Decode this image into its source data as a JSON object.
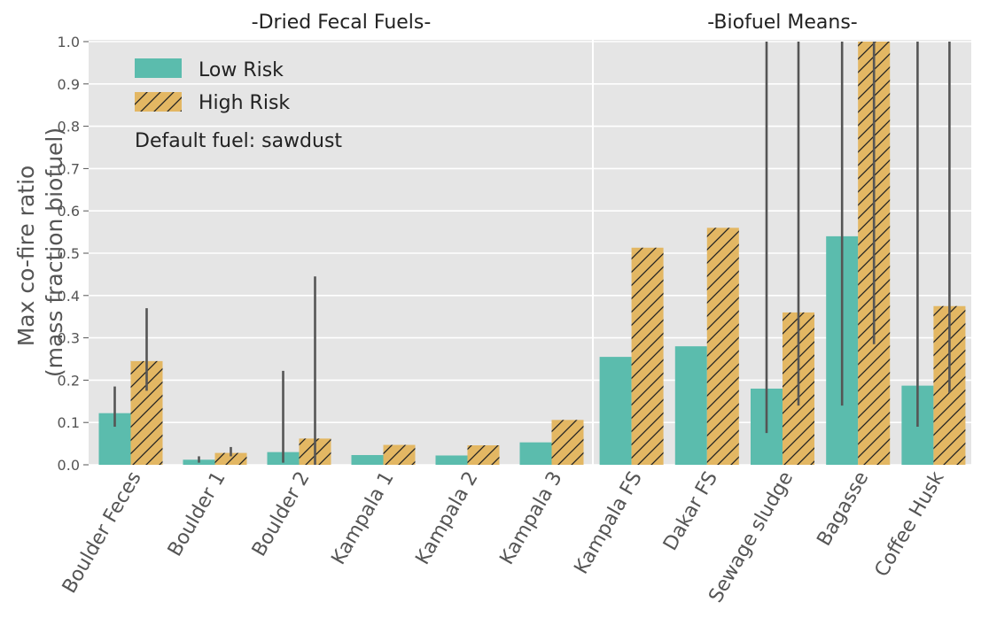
{
  "chart_data": {
    "type": "bar",
    "title": "",
    "xlabel": "",
    "ylabel": [
      "Max co-fire ratio",
      "(mass fraction biofuel)"
    ],
    "ylim": [
      0,
      1.0
    ],
    "yticks": [
      "0.0",
      "0.1",
      "0.2",
      "0.3",
      "0.4",
      "0.5",
      "0.6",
      "0.7",
      "0.8",
      "0.9",
      "1.0"
    ],
    "grid": true,
    "legend_position": "top-left",
    "annotation": "Default fuel: sawdust",
    "colors": {
      "low": "#5bbcad",
      "high": "#e3b763",
      "error_bar": "#555555",
      "background": "#e5e5e5",
      "hatch": "#222222"
    },
    "panels": [
      {
        "title": "-Dried Fecal Fuels-",
        "categories": [
          "Boulder Feces",
          "Boulder 1",
          "Boulder 2",
          "Kampala 1",
          "Kampala 2",
          "Kampala 3"
        ],
        "series": [
          {
            "name": "Low Risk",
            "values": [
              0.122,
              0.012,
              0.03,
              0.023,
              0.022,
              0.053
            ],
            "err": [
              [
                0.09,
                0.185
              ],
              [
                0.005,
                0.02
              ],
              [
                0.005,
                0.222
              ],
              null,
              null,
              null
            ]
          },
          {
            "name": "High Risk",
            "values": [
              0.245,
              0.028,
              0.062,
              0.047,
              0.046,
              0.106
            ],
            "err": [
              [
                0.175,
                0.37
              ],
              [
                0.02,
                0.042
              ],
              [
                0.0,
                0.445
              ],
              null,
              null,
              null
            ]
          }
        ]
      },
      {
        "title": "-Biofuel Means-",
        "categories": [
          "Kampala FS",
          "Dakar FS",
          "Sewage sludge",
          "Bagasse",
          "Coffee Husk"
        ],
        "series": [
          {
            "name": "Low Risk",
            "values": [
              0.255,
              0.28,
              0.18,
              0.54,
              0.187
            ],
            "err": [
              null,
              null,
              [
                0.075,
                1.0
              ],
              [
                0.14,
                1.0
              ],
              [
                0.09,
                1.0
              ]
            ]
          },
          {
            "name": "High Risk",
            "values": [
              0.513,
              0.56,
              0.36,
              1.0,
              0.375
            ],
            "err": [
              null,
              null,
              [
                0.14,
                1.0
              ],
              [
                0.285,
                1.0
              ],
              [
                0.17,
                1.0
              ]
            ]
          }
        ]
      }
    ]
  }
}
